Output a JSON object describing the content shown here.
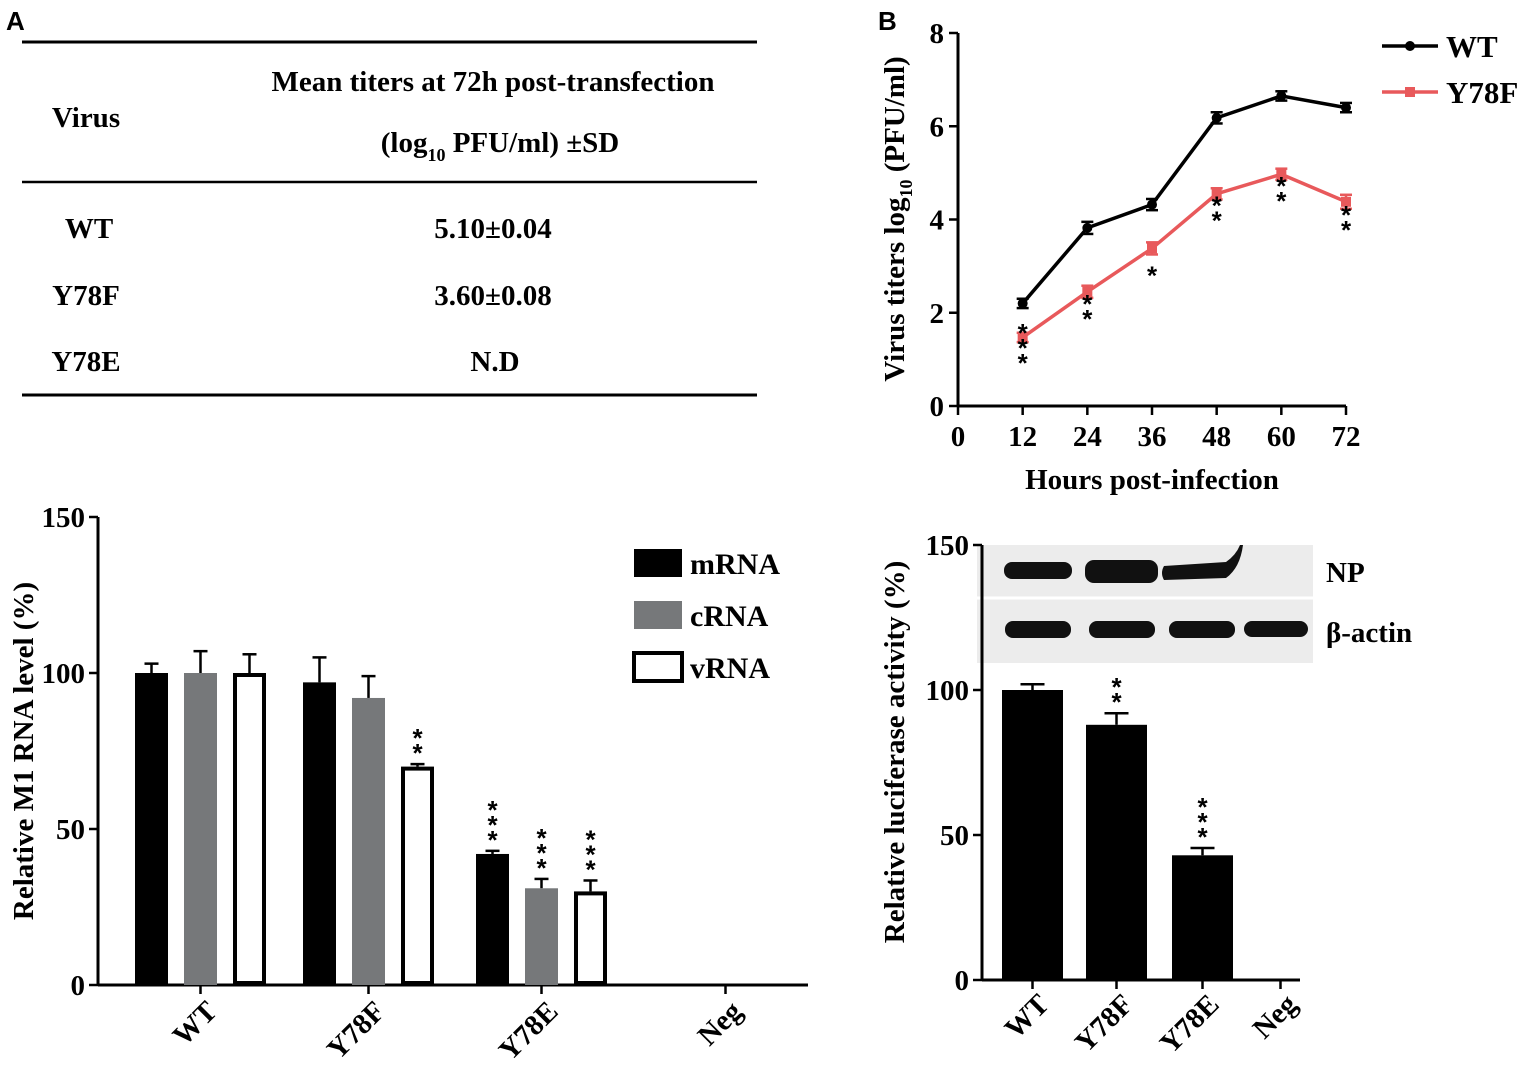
{
  "panels": {
    "a": "A",
    "b": "B"
  },
  "titer_table": {
    "header_virus": "Virus",
    "header_titer_line1": "Mean titers at 72h post-transfection",
    "header_titer_line2_pre": "(log",
    "header_titer_line2_sub": "10",
    "header_titer_line2_post": " PFU/ml) ±SD",
    "rows": [
      {
        "virus": "WT",
        "titer": "5.10±0.04"
      },
      {
        "virus": "Y78F",
        "titer": "3.60±0.08"
      },
      {
        "virus": "Y78E",
        "titer": "N.D"
      }
    ]
  },
  "colors": {
    "wt": "#000000",
    "y78f": "#e8595b",
    "mrna": "#000000",
    "crna": "#76787a",
    "vrna": "#ffffff"
  },
  "chart_data": [
    {
      "id": "growth-curve",
      "type": "line",
      "ylabel_pre": "Virus titers log",
      "ylabel_sub": "10",
      "ylabel_post": " (PFU/ml)",
      "xlabel": "Hours post-infection",
      "xlim": [
        0,
        72
      ],
      "ylim": [
        0,
        8
      ],
      "xticks": [
        0,
        12,
        24,
        36,
        48,
        60,
        72
      ],
      "yticks": [
        0,
        2,
        4,
        6,
        8
      ],
      "x": [
        12,
        24,
        36,
        48,
        60,
        72
      ],
      "series": [
        {
          "name": "WT",
          "color": "#000000",
          "values": [
            2.2,
            3.82,
            4.32,
            6.18,
            6.65,
            6.4
          ],
          "errors": [
            0.1,
            0.13,
            0.12,
            0.12,
            0.1,
            0.1
          ]
        },
        {
          "name": "Y78F",
          "color": "#e8595b",
          "values": [
            1.47,
            2.45,
            3.38,
            4.55,
            4.97,
            4.38
          ],
          "errors": [
            0.1,
            0.13,
            0.13,
            0.12,
            0.12,
            0.15
          ],
          "significance": [
            "***",
            "**",
            "*",
            "**",
            "**",
            "**"
          ]
        }
      ],
      "legend": [
        "WT",
        "Y78F"
      ]
    },
    {
      "id": "m1-rna-levels",
      "type": "bar",
      "ylabel": "Relative M1 RNA level (%)",
      "ylim": [
        0,
        150
      ],
      "yticks": [
        0,
        50,
        100,
        150
      ],
      "categories": [
        "WT",
        "Y78F",
        "Y78E",
        "Neg"
      ],
      "series": [
        {
          "name": "mRNA",
          "values": [
            100,
            97,
            42,
            0
          ],
          "errors": [
            3,
            8,
            1,
            0
          ],
          "significance": [
            "",
            "",
            "***",
            ""
          ]
        },
        {
          "name": "cRNA",
          "values": [
            100,
            92,
            31,
            0
          ],
          "errors": [
            7,
            7,
            3,
            0
          ],
          "significance": [
            "",
            "",
            "***",
            ""
          ]
        },
        {
          "name": "vRNA",
          "values": [
            100,
            70,
            30,
            0
          ],
          "errors": [
            6,
            0.8,
            3.5,
            0
          ],
          "significance": [
            "",
            "**",
            "***",
            ""
          ]
        }
      ],
      "legend": [
        "mRNA",
        "cRNA",
        "vRNA"
      ]
    },
    {
      "id": "luciferase-activity",
      "type": "bar",
      "ylabel": "Relative luciferase activity (%)",
      "ylim": [
        0,
        150
      ],
      "yticks": [
        0,
        50,
        100,
        150
      ],
      "categories": [
        "WT",
        "Y78F",
        "Y78E",
        "Neg"
      ],
      "values": [
        100,
        88,
        43,
        0
      ],
      "errors": [
        2,
        4,
        2.5,
        0
      ],
      "significance": [
        "",
        "**",
        "***",
        ""
      ],
      "blot_labels": [
        "NP",
        "β-actin"
      ]
    }
  ]
}
